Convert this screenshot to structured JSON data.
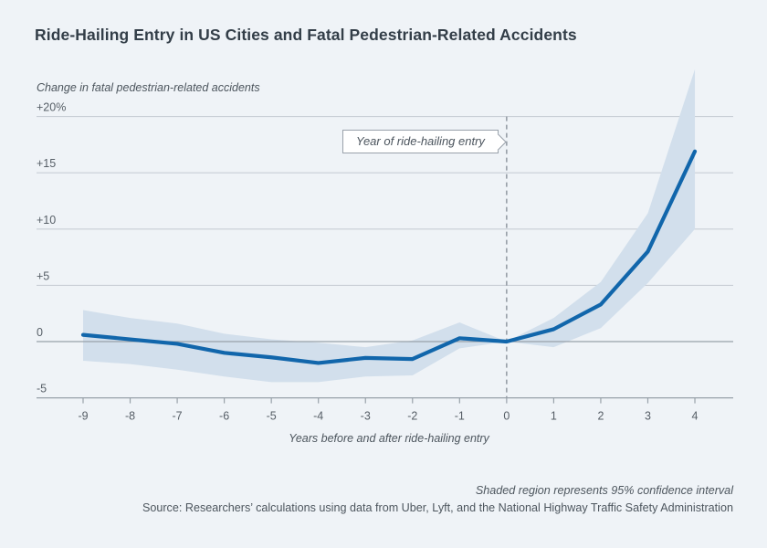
{
  "chart_data": {
    "type": "line",
    "title": "Ride-Hailing Entry in US Cities and Fatal Pedestrian-Related Accidents",
    "ylabel": "Change in fatal pedestrian-related accidents",
    "xlabel": "Years before and after ride-hailing entry",
    "annotation": "Year of ride-hailing entry",
    "annotation_points_to_x": 0,
    "x": [
      -9,
      -8,
      -7,
      -6,
      -5,
      -4,
      -3,
      -2,
      -1,
      0,
      1,
      2,
      3,
      4
    ],
    "x_tick_labels": [
      "-9",
      "-8",
      "-7",
      "-6",
      "-5",
      "-4",
      "-3",
      "-2",
      "-1",
      "0",
      "1",
      "2",
      "3",
      "4"
    ],
    "series": [
      {
        "name": "change-in-fatal-pedestrian-accidents-percent",
        "values": [
          0.6,
          0.2,
          -0.2,
          -1.0,
          -1.4,
          -1.9,
          -1.45,
          -1.55,
          0.3,
          0.0,
          1.1,
          3.3,
          8.0,
          16.9
        ]
      }
    ],
    "confidence_band": {
      "label": "95% confidence interval",
      "upper": [
        2.8,
        2.1,
        1.6,
        0.7,
        0.2,
        -0.1,
        -0.5,
        0.1,
        1.7,
        0.0,
        2.1,
        5.3,
        11.4,
        24.2
      ],
      "lower": [
        -1.7,
        -2.0,
        -2.5,
        -3.1,
        -3.6,
        -3.6,
        -3.1,
        -3.0,
        -0.6,
        0.0,
        -0.5,
        1.2,
        5.2,
        10.0
      ]
    },
    "y_ticks": [
      {
        "value": 20,
        "label": "+20%"
      },
      {
        "value": 15,
        "label": "+15"
      },
      {
        "value": 10,
        "label": "+10"
      },
      {
        "value": 5,
        "label": "+5"
      },
      {
        "value": 0,
        "label": "0"
      },
      {
        "value": -5,
        "label": "-5"
      }
    ],
    "ylim": [
      -5,
      20
    ],
    "xlim": [
      -9,
      4
    ],
    "grid": true,
    "legend": false,
    "event_line_x": 0,
    "colors": {
      "line": "#1166ab",
      "band": "#d2dfec",
      "grid": "#c8ced5",
      "axis": "#98a1a9",
      "zero_line": "#98a1a9",
      "dashed": "#8a929b",
      "background": "#eff3f7",
      "title": "#333e48",
      "text": "#565e66"
    }
  },
  "footer": {
    "note": "Shaded region represents 95% confidence interval",
    "source": "Source: Researchers’ calculations using data from Uber, Lyft, and the National Highway Traffic Safety Administration"
  }
}
